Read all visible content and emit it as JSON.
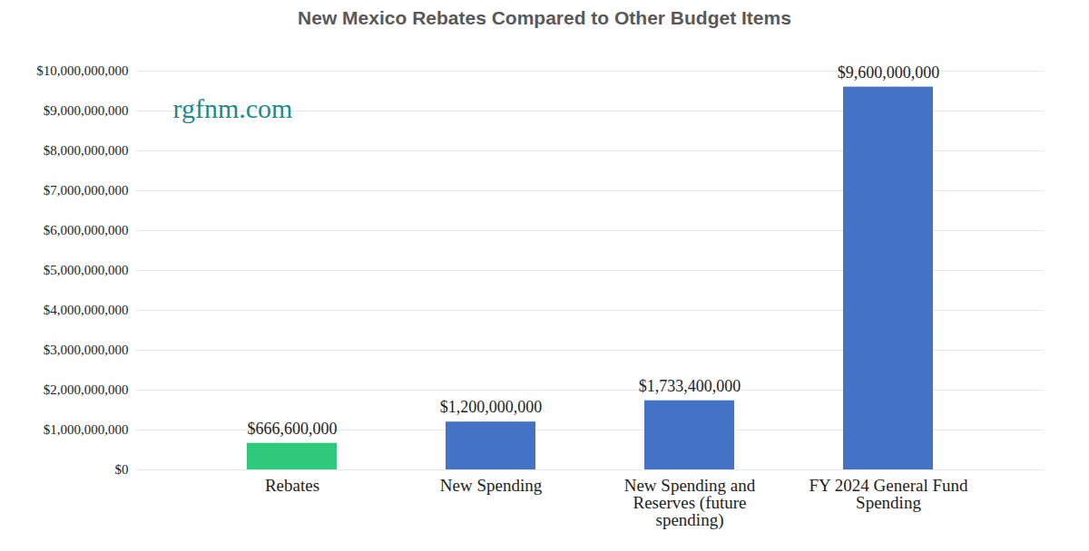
{
  "chart_data": {
    "type": "bar",
    "title": "New Mexico Rebates Compared to Other Budget Items",
    "categories": [
      "Rebates",
      "New Spending",
      "New Spending and Reserves (future spending)",
      "FY 2024 General Fund Spending"
    ],
    "values": [
      666600000,
      1200000000,
      1733400000,
      9600000000
    ],
    "value_labels": [
      "$666,600,000",
      "$1,200,000,000",
      "$1,733,400,000",
      "$9,600,000,000"
    ],
    "colors": [
      "#2ec97a",
      "#4472c4",
      "#4472c4",
      "#4472c4"
    ],
    "ylim": [
      0,
      10000000000
    ],
    "yticks": [
      {
        "value": 0,
        "label": "$0"
      },
      {
        "value": 1000000000,
        "label": "$1,000,000,000"
      },
      {
        "value": 2000000000,
        "label": "$2,000,000,000"
      },
      {
        "value": 3000000000,
        "label": "$3,000,000,000"
      },
      {
        "value": 4000000000,
        "label": "$4,000,000,000"
      },
      {
        "value": 5000000000,
        "label": "$5,000,000,000"
      },
      {
        "value": 6000000000,
        "label": "$6,000,000,000"
      },
      {
        "value": 7000000000,
        "label": "$7,000,000,000"
      },
      {
        "value": 8000000000,
        "label": "$8,000,000,000"
      },
      {
        "value": 9000000000,
        "label": "$9,000,000,000"
      },
      {
        "value": 10000000000,
        "label": "$10,000,000,000"
      }
    ],
    "annotations": [
      "rgfnm.com"
    ],
    "grid": true,
    "data_labels": true
  }
}
